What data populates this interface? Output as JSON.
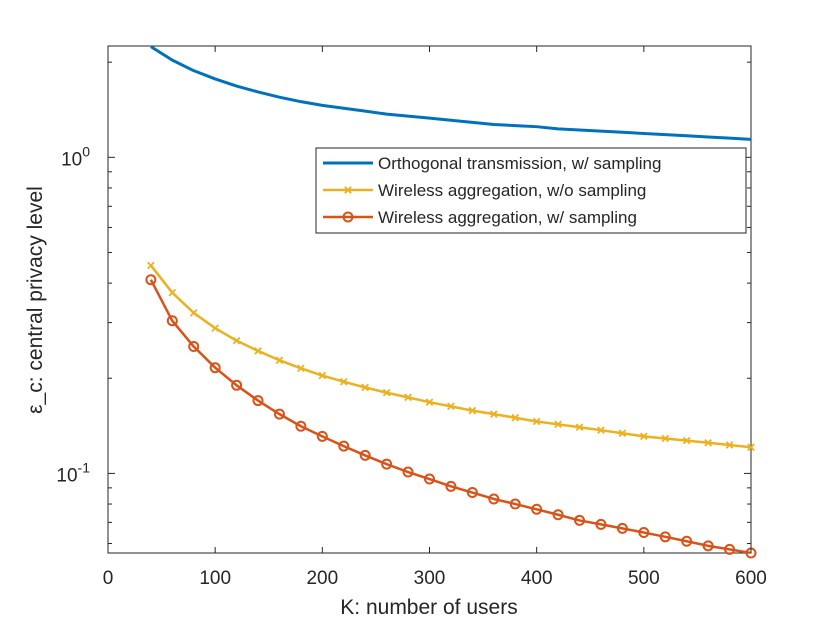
{
  "chart_data": {
    "type": "line",
    "y_scale": "log",
    "xlabel": "K: number of users",
    "ylabel": "ε_c: central privacy level",
    "xlim": [
      0,
      600
    ],
    "ylim": [
      0.056,
      2.25
    ],
    "xticks": [
      0,
      100,
      200,
      300,
      400,
      500,
      600
    ],
    "xtick_labels": [
      "0",
      "100",
      "200",
      "300",
      "400",
      "500",
      "600"
    ],
    "yticks": [
      0.1,
      1
    ],
    "ytick_labels": [
      {
        "base": "10",
        "exp": "-1"
      },
      {
        "base": "10",
        "exp": "0"
      }
    ],
    "grid": false,
    "legend_position": "top-right",
    "series": [
      {
        "name": "Orthogonal transmission, w/ sampling",
        "color": "#0072BD",
        "marker": "none",
        "x": [
          40,
          60,
          80,
          100,
          120,
          140,
          160,
          180,
          200,
          220,
          240,
          260,
          280,
          300,
          320,
          340,
          360,
          380,
          400,
          420,
          440,
          460,
          480,
          500,
          520,
          540,
          560,
          580,
          600
        ],
        "y": [
          2.24,
          2.03,
          1.88,
          1.77,
          1.68,
          1.61,
          1.55,
          1.5,
          1.46,
          1.43,
          1.4,
          1.37,
          1.35,
          1.33,
          1.31,
          1.29,
          1.27,
          1.26,
          1.25,
          1.23,
          1.22,
          1.21,
          1.2,
          1.19,
          1.18,
          1.17,
          1.16,
          1.15,
          1.14
        ]
      },
      {
        "name": "Wireless aggregation, w/o sampling",
        "color": "#EDB120",
        "marker": "x",
        "x": [
          40,
          60,
          80,
          100,
          120,
          140,
          160,
          180,
          200,
          220,
          240,
          260,
          280,
          300,
          320,
          340,
          360,
          380,
          400,
          420,
          440,
          460,
          480,
          500,
          520,
          540,
          560,
          580,
          600
        ],
        "y": [
          0.455,
          0.373,
          0.322,
          0.288,
          0.263,
          0.244,
          0.228,
          0.215,
          0.204,
          0.195,
          0.187,
          0.18,
          0.174,
          0.168,
          0.163,
          0.158,
          0.154,
          0.15,
          0.146,
          0.143,
          0.14,
          0.137,
          0.134,
          0.131,
          0.129,
          0.127,
          0.125,
          0.123,
          0.121
        ]
      },
      {
        "name": "Wireless aggregation, w/ sampling",
        "color": "#D95319",
        "marker": "o",
        "x": [
          40,
          60,
          80,
          100,
          120,
          140,
          160,
          180,
          200,
          220,
          240,
          260,
          280,
          300,
          320,
          340,
          360,
          380,
          400,
          420,
          440,
          460,
          480,
          500,
          520,
          540,
          560,
          580,
          600
        ],
        "y": [
          0.41,
          0.304,
          0.252,
          0.216,
          0.19,
          0.17,
          0.154,
          0.141,
          0.131,
          0.122,
          0.114,
          0.107,
          0.101,
          0.096,
          0.091,
          0.087,
          0.083,
          0.08,
          0.077,
          0.074,
          0.071,
          0.069,
          0.067,
          0.065,
          0.063,
          0.061,
          0.059,
          0.0575,
          0.056
        ]
      }
    ]
  }
}
